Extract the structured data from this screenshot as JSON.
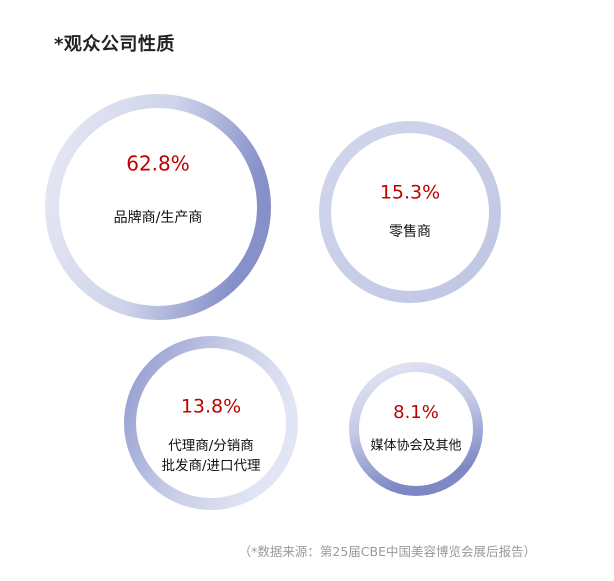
{
  "chart_data": {
    "type": "bubble",
    "title": "*观众公司性质",
    "unit": "%",
    "items": [
      {
        "label": [
          "品牌商/生产商"
        ],
        "value": 62.8,
        "value_text": "62.8%"
      },
      {
        "label": [
          "零售商"
        ],
        "value": 15.3,
        "value_text": "15.3%"
      },
      {
        "label": [
          "代理商/分销商",
          "批发商/进口代理"
        ],
        "value": 13.8,
        "value_text": "13.8%"
      },
      {
        "label": [
          "媒体协会及其他"
        ],
        "value": 8.1,
        "value_text": "8.1%"
      }
    ],
    "source": "（*数据来源：第25届CBE中国美容博览会展后报告）"
  },
  "colors": {
    "value_text": "#c00000",
    "ring_light": "#e4e6f3",
    "ring_dark": "#8d97cd"
  }
}
